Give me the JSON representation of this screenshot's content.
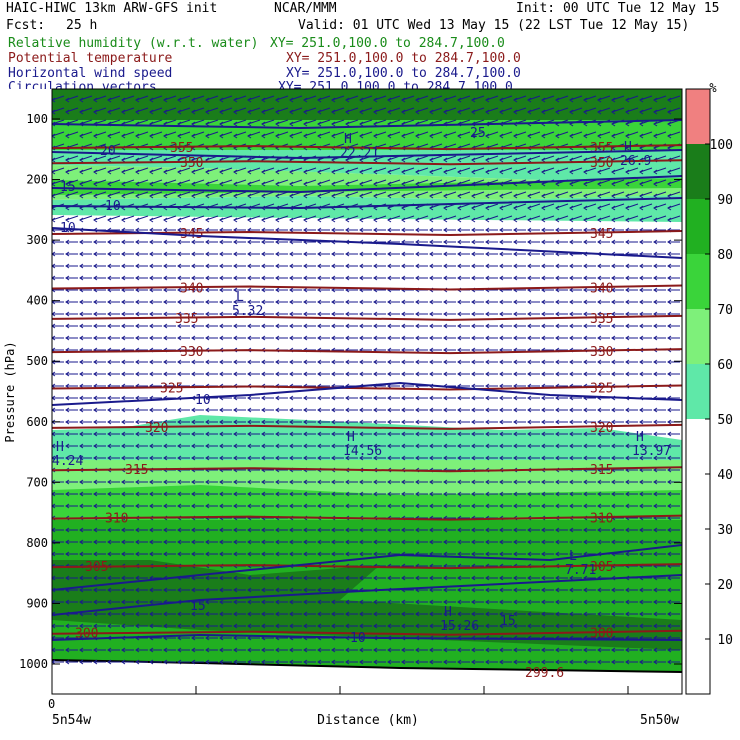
{
  "header": {
    "title": "HAIC-HIWC 13km ARW-GFS init",
    "org": "NCAR/MMM",
    "init": "Init: 00 UTC Tue 12 May 15",
    "fcst_label": "Fcst:",
    "fcst_value": "25 h",
    "valid": "Valid: 01 UTC Wed 13 May 15 (22 LST Tue 12 May 15)",
    "fields": [
      {
        "name": "Relative humidity (w.r.t. water)",
        "xy": "XY= 251.0,100.0 to 284.7,100.0",
        "color": "#1a8c1a"
      },
      {
        "name": "Potential temperature",
        "xy": "XY= 251.0,100.0 to 284.7,100.0",
        "color": "#8b1a1a"
      },
      {
        "name": "Horizontal wind speed",
        "xy": "XY= 251.0,100.0 to 284.7,100.0",
        "color": "#1a1a8c"
      },
      {
        "name": "Circulation vectors",
        "xy": "XY= 251.0,100.0 to 284.7,100.0",
        "color": "#1a1a8c"
      }
    ]
  },
  "chart_data": {
    "type": "cross-section",
    "ylabel": "Pressure (hPa)",
    "xlabel": "Distance (km)",
    "x_start_label": "5n54w",
    "x_end_label": "5n50w",
    "x_origin_label": "0",
    "yticks": [
      100,
      200,
      300,
      400,
      500,
      600,
      700,
      800,
      900,
      1000
    ],
    "ylim": [
      80,
      1050
    ],
    "colorbar": {
      "unit": "%",
      "ticks": [
        10,
        20,
        30,
        40,
        50,
        60,
        70,
        80,
        90,
        100
      ],
      "levels": [
        {
          "from": 0,
          "to": 50,
          "color": "#ffffff"
        },
        {
          "from": 50,
          "to": 60,
          "color": "#5fe8a8"
        },
        {
          "from": 60,
          "to": 70,
          "color": "#7ef07a"
        },
        {
          "from": 70,
          "to": 80,
          "color": "#3ad43a"
        },
        {
          "from": 80,
          "to": 90,
          "color": "#21b021"
        },
        {
          "from": 90,
          "to": 100,
          "color": "#1a7d1a"
        },
        {
          "from": 100,
          "to": 110,
          "color": "#f08080"
        }
      ]
    },
    "theta_labels": [
      "355",
      "350",
      "345",
      "340",
      "335",
      "330",
      "325",
      "320",
      "315",
      "310",
      "305",
      "300",
      "299.6"
    ],
    "theta_levels": [
      {
        "label": "355",
        "p": 148
      },
      {
        "label": "350",
        "p": 173
      },
      {
        "label": "345",
        "p": 290
      },
      {
        "label": "340",
        "p": 380
      },
      {
        "label": "335",
        "p": 430
      },
      {
        "label": "330",
        "p": 485
      },
      {
        "label": "325",
        "p": 545
      },
      {
        "label": "320",
        "p": 610
      },
      {
        "label": "315",
        "p": 680
      },
      {
        "label": "310",
        "p": 760
      },
      {
        "label": "305",
        "p": 840
      },
      {
        "label": "300",
        "p": 950
      }
    ],
    "wind_labels": [
      "25",
      "20",
      "15",
      "10",
      "10",
      "10",
      "15",
      "15",
      "10"
    ],
    "extrema": [
      {
        "type": "H",
        "value": "22.21",
        "p": 150
      },
      {
        "type": "L",
        "value": "5.32",
        "p": 395
      },
      {
        "type": "H",
        "value": "14.56",
        "p": 630
      },
      {
        "type": "H",
        "value": "4.24",
        "p": 660
      },
      {
        "type": "H",
        "value": "13.97",
        "p": 630
      },
      {
        "type": "L",
        "value": "7.71",
        "p": 860
      },
      {
        "type": "H",
        "value": "15.26",
        "p": 940
      },
      {
        "type": "H",
        "value": "26.9",
        "p": 165
      }
    ]
  }
}
